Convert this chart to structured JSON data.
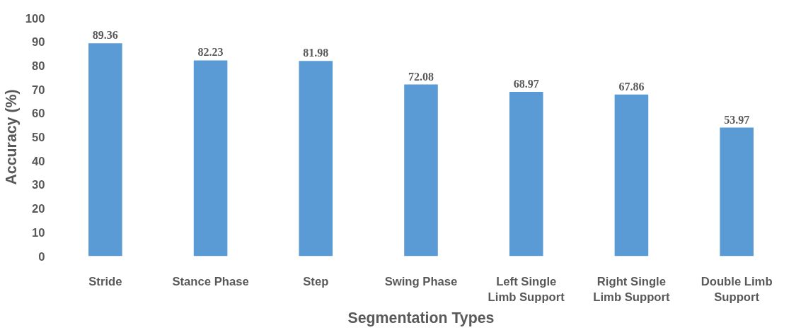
{
  "chart_data": {
    "type": "bar",
    "xlabel": "Segmentation Types",
    "ylabel": "Accuracy (%)",
    "categories": [
      "Stride",
      "Stance Phase",
      "Step",
      "Swing Phase",
      "Left Single Limb Support",
      "Right Single Limb Support",
      "Double Limb Support"
    ],
    "values": [
      89.36,
      82.23,
      81.98,
      72.08,
      68.97,
      67.86,
      53.97
    ],
    "color": "#5b9bd5",
    "ylim": [
      0,
      100
    ],
    "yticks": [
      0,
      10,
      20,
      30,
      40,
      50,
      60,
      70,
      80,
      90,
      100
    ],
    "grid": false,
    "data_labels": true
  }
}
